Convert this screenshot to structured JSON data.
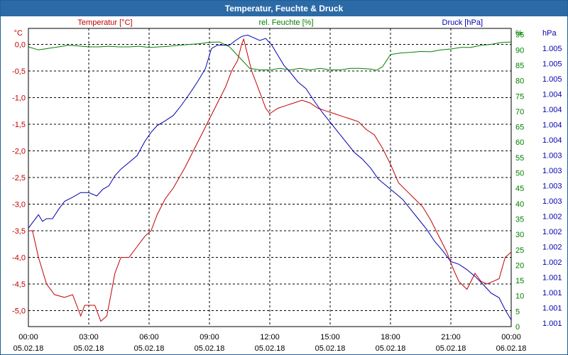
{
  "window": {
    "title": "Temperatur, Feuchte & Druck"
  },
  "legend": {
    "temperature": "Temperatur [°C]",
    "humidity": "rel. Feuchte [%]",
    "pressure": "Druck [hPa]"
  },
  "colors": {
    "temperature": "#c00000",
    "humidity": "#008000",
    "pressure": "#0000b0",
    "grid": "#000000",
    "title_bg": "#2b6aa6"
  },
  "chart_data": {
    "type": "line",
    "title": "Temperatur, Feuchte & Druck",
    "xlabel": "",
    "x_hours_range": [
      0,
      24
    ],
    "x_ticks": [
      {
        "time": "00:00",
        "date": "05.02.18"
      },
      {
        "time": "03:00",
        "date": "05.02.18"
      },
      {
        "time": "06:00",
        "date": "05.02.18"
      },
      {
        "time": "09:00",
        "date": "05.02.18"
      },
      {
        "time": "12:00",
        "date": "05.02.18"
      },
      {
        "time": "15:00",
        "date": "05.02.18"
      },
      {
        "time": "18:00",
        "date": "05.02.18"
      },
      {
        "time": "21:00",
        "date": "05.02.18"
      },
      {
        "time": "00:00",
        "date": "06.02.18"
      }
    ],
    "axes": {
      "temperature": {
        "unit": "°C",
        "ylim": [
          -5.3,
          0.3
        ],
        "ticks": [
          "0,0",
          "-0,5",
          "-1,0",
          "-1,5",
          "-2,0",
          "-2,5",
          "-3,0",
          "-3,5",
          "-4,0",
          "-4,5",
          "-5,0"
        ]
      },
      "humidity": {
        "unit": "%",
        "ylim": [
          0,
          97
        ],
        "ticks": [
          "95",
          "90",
          "85",
          "80",
          "75",
          "70",
          "65",
          "60",
          "55",
          "50",
          "45",
          "40",
          "35",
          "30",
          "25",
          "20",
          "15",
          "10",
          "5",
          "0"
        ]
      },
      "pressure": {
        "unit": "hPa",
        "ticks": [
          "1.005",
          "1.005",
          "1.005",
          "1.004",
          "1.004",
          "1.004",
          "1.004",
          "1.003",
          "1.003",
          "1.003",
          "1.003",
          "1.002",
          "1.002",
          "1.002",
          "1.002",
          "1.001",
          "1.001",
          "1.001",
          "1.001"
        ]
      }
    },
    "series": [
      {
        "name": "Temperatur [°C]",
        "axis": "temperature",
        "color": "#c00000",
        "x": [
          0,
          0.2,
          0.5,
          0.9,
          1.3,
          1.8,
          2.2,
          2.4,
          2.6,
          2.8,
          3.0,
          3.3,
          3.6,
          3.9,
          4.1,
          4.3,
          4.6,
          5.0,
          5.4,
          5.8,
          6.1,
          6.4,
          6.8,
          7.2,
          7.5,
          7.8,
          8.2,
          8.6,
          9.0,
          9.4,
          9.8,
          10.1,
          10.4,
          10.6,
          10.7,
          10.9,
          11.1,
          11.3,
          11.6,
          11.8,
          12.0,
          12.4,
          12.8,
          13.2,
          13.6,
          14.0,
          14.4,
          14.8,
          15.2,
          15.6,
          16.0,
          16.4,
          16.8,
          17.2,
          17.6,
          18.0,
          18.4,
          18.8,
          19.2,
          19.6,
          20.0,
          20.4,
          20.8,
          21.1,
          21.4,
          21.8,
          22.2,
          22.5,
          22.8,
          23.1,
          23.4,
          23.7,
          24.0
        ],
        "values": [
          -3.5,
          -3.5,
          -4.0,
          -4.5,
          -4.7,
          -4.75,
          -4.7,
          -4.9,
          -5.1,
          -4.9,
          -4.9,
          -4.9,
          -5.2,
          -5.1,
          -4.7,
          -4.3,
          -4.0,
          -4.0,
          -3.8,
          -3.6,
          -3.5,
          -3.2,
          -2.9,
          -2.7,
          -2.5,
          -2.3,
          -2.0,
          -1.7,
          -1.4,
          -1.1,
          -0.8,
          -0.5,
          -0.3,
          0.0,
          0.1,
          -0.2,
          -0.5,
          -0.7,
          -1.0,
          -1.2,
          -1.3,
          -1.2,
          -1.15,
          -1.1,
          -1.05,
          -1.1,
          -1.2,
          -1.25,
          -1.3,
          -1.35,
          -1.4,
          -1.45,
          -1.6,
          -1.7,
          -1.95,
          -2.25,
          -2.6,
          -2.75,
          -2.9,
          -3.05,
          -3.3,
          -3.6,
          -3.9,
          -4.2,
          -4.45,
          -4.6,
          -4.3,
          -4.45,
          -4.5,
          -4.45,
          -4.4,
          -4.0,
          -3.9
        ]
      },
      {
        "name": "rel. Feuchte [%]",
        "axis": "humidity",
        "color": "#008000",
        "x": [
          0,
          0.5,
          1.0,
          1.5,
          2.0,
          2.5,
          3.0,
          3.5,
          4.0,
          4.5,
          5.0,
          5.5,
          6.0,
          6.5,
          7.0,
          7.5,
          8.0,
          8.5,
          9.0,
          9.5,
          10.0,
          10.5,
          11.0,
          11.5,
          12.0,
          12.5,
          13.0,
          13.5,
          14.0,
          14.5,
          15.0,
          15.5,
          16.0,
          16.5,
          17.0,
          17.3,
          17.6,
          18.0,
          18.5,
          19.0,
          19.5,
          20.0,
          20.5,
          21.0,
          21.5,
          22.0,
          22.5,
          23.0,
          23.5,
          24.0
        ],
        "values": [
          91,
          90,
          90.5,
          91,
          91.5,
          91.3,
          91,
          91,
          91.2,
          91,
          91,
          91.2,
          90.8,
          91,
          91.2,
          91.5,
          91.8,
          92,
          92.5,
          92.6,
          91,
          87.5,
          84,
          83.5,
          83.5,
          84,
          83.5,
          84,
          83.5,
          84,
          83.5,
          83.5,
          84,
          84,
          83.8,
          83.4,
          84.5,
          88.5,
          89,
          89.2,
          89.5,
          89.4,
          90,
          90.3,
          90.8,
          90.8,
          91.5,
          91.8,
          92.4,
          92.6
        ]
      },
      {
        "name": "Druck [hPa]",
        "axis": "pressure",
        "color": "#0000b0",
        "x": [
          0,
          0.2,
          0.5,
          0.7,
          0.9,
          1.2,
          1.5,
          1.8,
          2.2,
          2.6,
          3.0,
          3.4,
          3.7,
          4.0,
          4.3,
          4.6,
          5.0,
          5.4,
          5.8,
          6.1,
          6.4,
          6.8,
          7.2,
          7.6,
          8.0,
          8.4,
          8.8,
          9.1,
          9.4,
          9.7,
          10.0,
          10.3,
          10.6,
          10.9,
          11.2,
          11.5,
          11.8,
          12.1,
          12.4,
          12.7,
          13.0,
          13.4,
          13.8,
          14.2,
          14.6,
          15.0,
          15.4,
          15.8,
          16.2,
          16.6,
          17.0,
          17.4,
          17.8,
          18.2,
          18.6,
          19.0,
          19.4,
          19.8,
          20.2,
          20.6,
          21.0,
          21.4,
          21.8,
          22.2,
          22.6,
          23.0,
          23.4,
          23.7,
          24.0
        ],
        "values": [
          1001.82,
          1001.9,
          1002.02,
          1001.92,
          1001.96,
          1001.96,
          1002.1,
          1002.22,
          1002.28,
          1002.35,
          1002.35,
          1002.3,
          1002.4,
          1002.45,
          1002.6,
          1002.7,
          1002.8,
          1002.9,
          1003.12,
          1003.25,
          1003.35,
          1003.42,
          1003.5,
          1003.65,
          1003.82,
          1004.0,
          1004.2,
          1004.5,
          1004.55,
          1004.55,
          1004.55,
          1004.62,
          1004.68,
          1004.7,
          1004.66,
          1004.62,
          1004.65,
          1004.55,
          1004.4,
          1004.25,
          1004.15,
          1004.0,
          1003.9,
          1003.72,
          1003.55,
          1003.4,
          1003.25,
          1003.1,
          1002.95,
          1002.85,
          1002.72,
          1002.55,
          1002.45,
          1002.35,
          1002.25,
          1002.1,
          1001.95,
          1001.8,
          1001.62,
          1001.48,
          1001.32,
          1001.28,
          1001.2,
          1001.1,
          1000.98,
          1000.85,
          1000.78,
          1000.6,
          1000.45
        ]
      }
    ]
  }
}
